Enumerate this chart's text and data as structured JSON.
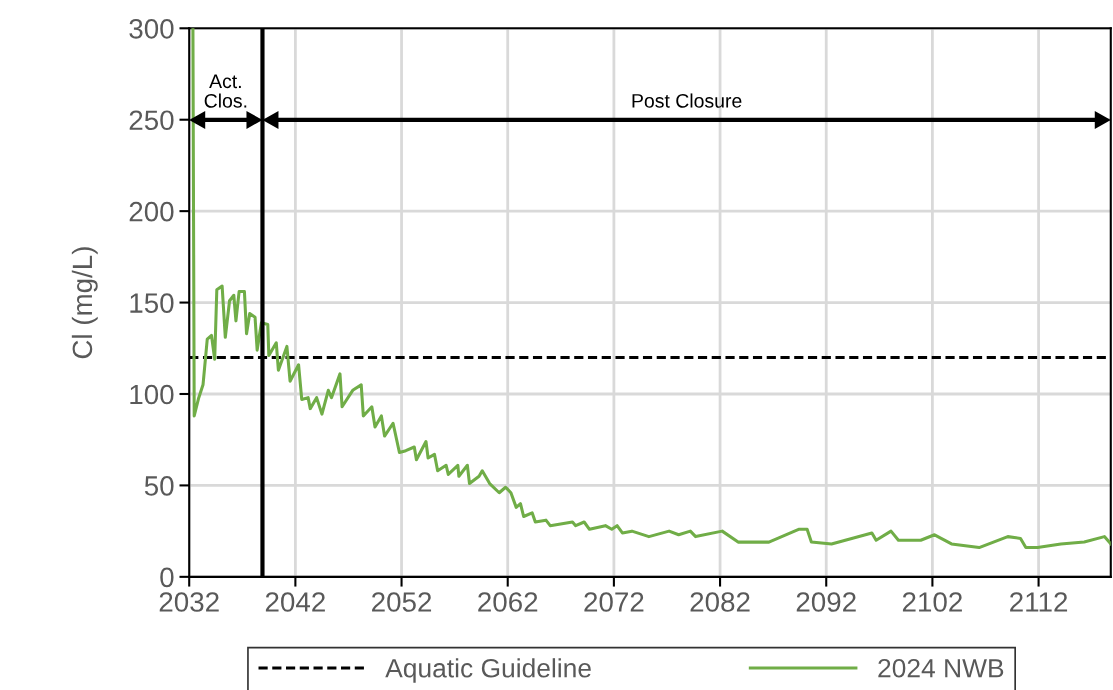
{
  "chart_data": {
    "type": "line",
    "ylabel": "Cl (mg/L)",
    "xlim": [
      2032,
      2118.8
    ],
    "xticks": [
      2032,
      2042,
      2052,
      2062,
      2072,
      2082,
      2092,
      2102,
      2112
    ],
    "ylim": [
      0,
      300
    ],
    "yticks": [
      0,
      50,
      100,
      150,
      200,
      250,
      300
    ],
    "grid": true,
    "legend": "bottom",
    "marker": "none",
    "ref_lines": [
      {
        "axis": "x",
        "value": 2038.9,
        "color": "#000000"
      }
    ],
    "annotations": [
      "Act.\nClos.",
      "Post Closure"
    ],
    "series": [
      {
        "name": "Aquatic Guideline",
        "color": "#000000",
        "line_style": "dashed",
        "x": [
          2032,
          2118.8
        ],
        "values": [
          120,
          120
        ]
      },
      {
        "name": "2024 NWB",
        "color": "#70ad47",
        "line_style": "solid",
        "x": [
          2032.35,
          2032.47,
          2032.9,
          2033.3,
          2033.7,
          2034.1,
          2034.4,
          2034.6,
          2035.1,
          2035.4,
          2035.8,
          2036.2,
          2036.4,
          2036.7,
          2037.2,
          2037.4,
          2037.7,
          2038.2,
          2038.4,
          2038.8,
          2039.4,
          2039.5,
          2040.2,
          2040.4,
          2041.2,
          2041.5,
          2042.3,
          2042.6,
          2043.2,
          2043.4,
          2044.0,
          2044.5,
          2045.1,
          2045.4,
          2046.2,
          2046.4,
          2047.4,
          2048.2,
          2048.4,
          2049.2,
          2049.5,
          2050.1,
          2050.4,
          2051.2,
          2051.8,
          2052.4,
          2053.2,
          2053.4,
          2054.3,
          2054.5,
          2055.1,
          2055.4,
          2056.2,
          2056.4,
          2057.3,
          2057.4,
          2058.2,
          2058.4,
          2059.3,
          2059.6,
          2060.3,
          2061.2,
          2061.8,
          2062.3,
          2062.8,
          2063.2,
          2063.5,
          2064.3,
          2064.6,
          2065.6,
          2066.0,
          2068.1,
          2068.4,
          2069.2,
          2069.7,
          2071.2,
          2071.8,
          2072.3,
          2072.8,
          2073.7,
          2075.3,
          2077.2,
          2078.1,
          2079.2,
          2079.7,
          2082.2,
          2083.7,
          2086.6,
          2089.4,
          2090.2,
          2090.6,
          2092.5,
          2096.3,
          2096.7,
          2098.1,
          2098.8,
          2100.9,
          2102.2,
          2103.8,
          2106.4,
          2109.1,
          2110.3,
          2110.8,
          2111.9,
          2114.1,
          2116.3,
          2118.2,
          2118.8
        ],
        "values": [
          300,
          88,
          98,
          105,
          130,
          132,
          119,
          157,
          159,
          131,
          151,
          154,
          140,
          156,
          156,
          133,
          144,
          142,
          124,
          139,
          138,
          121,
          128,
          113,
          126,
          107,
          116,
          97,
          98,
          92,
          98,
          89,
          102,
          98,
          111,
          93,
          102,
          105,
          88,
          93,
          82,
          88,
          77,
          84,
          68,
          69,
          71,
          64,
          74,
          65,
          67,
          58,
          61,
          56,
          61,
          55,
          61,
          51,
          55,
          58,
          51,
          46,
          49,
          46,
          38,
          40,
          33,
          35,
          30,
          31,
          28,
          30,
          28,
          30,
          26,
          28,
          26,
          28,
          24,
          25,
          22,
          25,
          23,
          25,
          22,
          25,
          19,
          19,
          26,
          26,
          19,
          18,
          24,
          20,
          25,
          20,
          20,
          23,
          18,
          16,
          22,
          21,
          16,
          16,
          18,
          19,
          22,
          18
        ]
      }
    ]
  }
}
